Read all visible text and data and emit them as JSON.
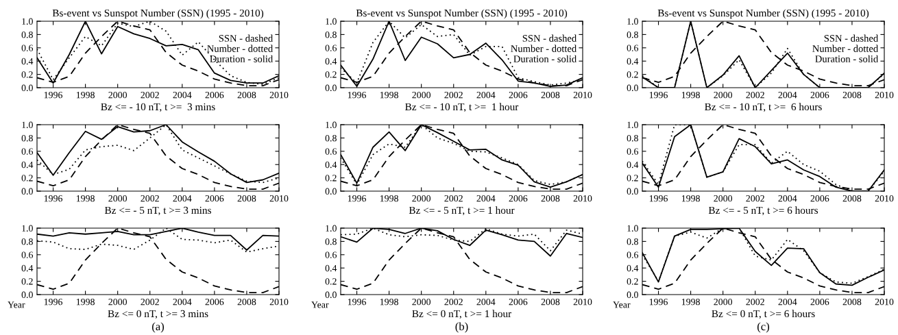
{
  "chart_data": [
    {
      "type": "line",
      "title": "Bs-event vs Sunspot Number (SSN) (1995 - 2010)",
      "xlabel": "Bz <= - 10 nT, t >=  3 mins",
      "x": [
        1995,
        1996,
        1997,
        1998,
        1999,
        2000,
        2001,
        2002,
        2003,
        2004,
        2005,
        2006,
        2007,
        2008,
        2009,
        2010
      ],
      "xlim": [
        1995,
        2010
      ],
      "xticks": [
        1996,
        1998,
        2000,
        2002,
        2004,
        2006,
        2008,
        2010
      ],
      "ylim": [
        0,
        1
      ],
      "yticks": [
        {
          "value": 0,
          "label": "0.0"
        },
        {
          "value": 0.2,
          "label": "0.2"
        },
        {
          "value": 0.4,
          "label": "0.4"
        },
        {
          "value": 0.6,
          "label": "0.6"
        },
        {
          "value": 0.8,
          "label": "0.8"
        },
        {
          "value": 1,
          "label": "1.0"
        }
      ],
      "grid": false,
      "annotations": [
        "SSN - dashed",
        "Number - dotted",
        "Duration - solid"
      ],
      "series": [
        {
          "color": "#000000",
          "line_style": "dashed",
          "values": [
            0.15,
            0.08,
            0.17,
            0.52,
            0.77,
            1.0,
            0.93,
            0.87,
            0.53,
            0.34,
            0.25,
            0.13,
            0.07,
            0.03,
            0.03,
            0.12
          ]
        },
        {
          "color": "#000000",
          "line_style": "dotted",
          "values": [
            0.58,
            0.12,
            0.45,
            0.77,
            0.63,
            0.97,
            0.92,
            1.0,
            0.85,
            0.49,
            0.69,
            0.42,
            0.18,
            0.08,
            0.05,
            0.15
          ]
        },
        {
          "color": "#000000",
          "line_style": "solid",
          "values": [
            0.45,
            0.07,
            0.5,
            1.0,
            0.51,
            0.92,
            0.81,
            0.74,
            0.63,
            0.65,
            0.57,
            0.22,
            0.11,
            0.07,
            0.07,
            0.18
          ]
        }
      ]
    },
    {
      "type": "line",
      "title": "Bs-event vs Sunspot Number (SSN) (1995 - 2010)",
      "xlabel": "Bz <= - 10 nT, t >=  1 hour",
      "x": [
        1995,
        1996,
        1997,
        1998,
        1999,
        2000,
        2001,
        2002,
        2003,
        2004,
        2005,
        2006,
        2007,
        2008,
        2009,
        2010
      ],
      "xlim": [
        1995,
        2010
      ],
      "xticks": [
        1996,
        1998,
        2000,
        2002,
        2004,
        2006,
        2008,
        2010
      ],
      "ylim": [
        0,
        1
      ],
      "yticks": [
        {
          "value": 0,
          "label": "0.0"
        },
        {
          "value": 0.2,
          "label": "0.2"
        },
        {
          "value": 0.4,
          "label": "0.4"
        },
        {
          "value": 0.6,
          "label": "0.6"
        },
        {
          "value": 0.8,
          "label": "0.8"
        },
        {
          "value": 1,
          "label": "1.0"
        }
      ],
      "grid": false,
      "annotations": [
        "SSN - dashed",
        "Number - dotted",
        "Duration - solid"
      ],
      "series": [
        {
          "color": "#000000",
          "line_style": "dashed",
          "values": [
            0.15,
            0.08,
            0.17,
            0.52,
            0.77,
            1.0,
            0.93,
            0.87,
            0.53,
            0.34,
            0.25,
            0.13,
            0.07,
            0.03,
            0.03,
            0.12
          ]
        },
        {
          "color": "#000000",
          "line_style": "dotted",
          "values": [
            0.3,
            0.07,
            0.68,
            1.0,
            0.75,
            0.95,
            0.77,
            0.8,
            0.49,
            0.62,
            0.62,
            0.15,
            0.09,
            0.04,
            0.07,
            0.12
          ]
        },
        {
          "color": "#000000",
          "line_style": "solid",
          "values": [
            0.34,
            0.02,
            0.43,
            1.0,
            0.41,
            0.76,
            0.66,
            0.45,
            0.5,
            0.67,
            0.42,
            0.1,
            0.07,
            0.02,
            0.04,
            0.15
          ]
        }
      ]
    },
    {
      "type": "line",
      "title": "Bs-event vs Sunspot Number (SSN) (1995 - 2010)",
      "xlabel": "Bz <= - 10 nT, t >=  6 hours",
      "x": [
        1995,
        1996,
        1997,
        1998,
        1999,
        2000,
        2001,
        2002,
        2003,
        2004,
        2005,
        2006,
        2007,
        2008,
        2009,
        2010
      ],
      "xlim": [
        1995,
        2010
      ],
      "xticks": [
        1996,
        1998,
        2000,
        2002,
        2004,
        2006,
        2008,
        2010
      ],
      "ylim": [
        0,
        1
      ],
      "yticks": [
        {
          "value": 0,
          "label": "0.0"
        },
        {
          "value": 0.2,
          "label": "0.2"
        },
        {
          "value": 0.4,
          "label": "0.4"
        },
        {
          "value": 0.6,
          "label": "0.6"
        },
        {
          "value": 0.8,
          "label": "0.8"
        },
        {
          "value": 1,
          "label": "1.0"
        }
      ],
      "grid": false,
      "annotations": [
        "SSN - dashed",
        "Number - dotted",
        "Duration - solid"
      ],
      "series": [
        {
          "color": "#000000",
          "line_style": "dashed",
          "values": [
            0.15,
            0.08,
            0.17,
            0.52,
            0.77,
            1.0,
            0.93,
            0.87,
            0.53,
            0.34,
            0.25,
            0.13,
            0.07,
            0.03,
            0.03,
            0.12
          ]
        },
        {
          "color": "#000000",
          "line_style": "dotted",
          "values": [
            0.18,
            0.0,
            0.0,
            1.0,
            0.0,
            0.18,
            0.42,
            0.0,
            0.22,
            0.59,
            0.2,
            0.0,
            0.0,
            0.0,
            0.0,
            0.21
          ]
        },
        {
          "color": "#000000",
          "line_style": "solid",
          "values": [
            0.16,
            0.0,
            0.0,
            1.0,
            0.0,
            0.19,
            0.48,
            0.0,
            0.26,
            0.52,
            0.2,
            0.0,
            0.0,
            0.0,
            0.0,
            0.22
          ]
        }
      ]
    },
    {
      "type": "line",
      "xlabel": "Bz <= - 5 nT, t >= 3 mins",
      "x": [
        1995,
        1996,
        1997,
        1998,
        1999,
        2000,
        2001,
        2002,
        2003,
        2004,
        2005,
        2006,
        2007,
        2008,
        2009,
        2010
      ],
      "xlim": [
        1995,
        2010
      ],
      "xticks": [
        1996,
        1998,
        2000,
        2002,
        2004,
        2006,
        2008,
        2010
      ],
      "ylim": [
        0,
        1
      ],
      "yticks": [
        {
          "value": 0,
          "label": "0.0"
        },
        {
          "value": 0.2,
          "label": "0.2"
        },
        {
          "value": 0.4,
          "label": "0.4"
        },
        {
          "value": 0.6,
          "label": "0.6"
        },
        {
          "value": 0.8,
          "label": "0.8"
        },
        {
          "value": 1,
          "label": "1.0"
        }
      ],
      "grid": false,
      "series": [
        {
          "color": "#000000",
          "line_style": "dashed",
          "values": [
            0.15,
            0.08,
            0.17,
            0.52,
            0.77,
            1.0,
            0.93,
            0.87,
            0.53,
            0.34,
            0.25,
            0.13,
            0.07,
            0.03,
            0.03,
            0.12
          ]
        },
        {
          "color": "#000000",
          "line_style": "dotted",
          "values": [
            0.47,
            0.25,
            0.33,
            0.62,
            0.67,
            0.69,
            0.61,
            0.8,
            1.0,
            0.62,
            0.5,
            0.38,
            0.26,
            0.15,
            0.13,
            0.2
          ]
        },
        {
          "color": "#000000",
          "line_style": "solid",
          "values": [
            0.58,
            0.24,
            0.58,
            0.9,
            0.78,
            0.97,
            0.89,
            0.91,
            1.0,
            0.74,
            0.59,
            0.45,
            0.26,
            0.13,
            0.17,
            0.27
          ]
        }
      ]
    },
    {
      "type": "line",
      "xlabel": "Bz <= - 5 nT, t >= 1 hour",
      "x": [
        1995,
        1996,
        1997,
        1998,
        1999,
        2000,
        2001,
        2002,
        2003,
        2004,
        2005,
        2006,
        2007,
        2008,
        2009,
        2010
      ],
      "xlim": [
        1995,
        2010
      ],
      "xticks": [
        1996,
        1998,
        2000,
        2002,
        2004,
        2006,
        2008,
        2010
      ],
      "ylim": [
        0,
        1
      ],
      "yticks": [
        {
          "value": 0,
          "label": "0.0"
        },
        {
          "value": 0.2,
          "label": "0.2"
        },
        {
          "value": 0.4,
          "label": "0.4"
        },
        {
          "value": 0.6,
          "label": "0.6"
        },
        {
          "value": 0.8,
          "label": "0.8"
        },
        {
          "value": 1,
          "label": "1.0"
        }
      ],
      "grid": false,
      "series": [
        {
          "color": "#000000",
          "line_style": "dashed",
          "values": [
            0.15,
            0.08,
            0.17,
            0.52,
            0.77,
            1.0,
            0.93,
            0.87,
            0.53,
            0.34,
            0.25,
            0.13,
            0.07,
            0.03,
            0.03,
            0.12
          ]
        },
        {
          "color": "#000000",
          "line_style": "dotted",
          "values": [
            0.5,
            0.1,
            0.55,
            0.71,
            0.66,
            1.0,
            0.8,
            0.72,
            0.6,
            0.59,
            0.5,
            0.4,
            0.16,
            0.1,
            0.14,
            0.25
          ]
        },
        {
          "color": "#000000",
          "line_style": "solid",
          "values": [
            0.55,
            0.12,
            0.66,
            0.89,
            0.61,
            1.0,
            0.88,
            0.75,
            0.62,
            0.63,
            0.47,
            0.39,
            0.14,
            0.06,
            0.14,
            0.25
          ]
        }
      ]
    },
    {
      "type": "line",
      "xlabel": "Bz <= - 5 nT, t >= 6 hours",
      "x": [
        1995,
        1996,
        1997,
        1998,
        1999,
        2000,
        2001,
        2002,
        2003,
        2004,
        2005,
        2006,
        2007,
        2008,
        2009,
        2010
      ],
      "xlim": [
        1995,
        2010
      ],
      "xticks": [
        1996,
        1998,
        2000,
        2002,
        2004,
        2006,
        2008,
        2010
      ],
      "ylim": [
        0,
        1
      ],
      "yticks": [
        {
          "value": 0,
          "label": "0.0"
        },
        {
          "value": 0.2,
          "label": "0.2"
        },
        {
          "value": 0.4,
          "label": "0.4"
        },
        {
          "value": 0.6,
          "label": "0.6"
        },
        {
          "value": 0.8,
          "label": "0.8"
        },
        {
          "value": 1,
          "label": "1.0"
        }
      ],
      "grid": false,
      "series": [
        {
          "color": "#000000",
          "line_style": "dashed",
          "values": [
            0.15,
            0.08,
            0.17,
            0.52,
            0.77,
            1.0,
            0.93,
            0.87,
            0.53,
            0.34,
            0.25,
            0.13,
            0.07,
            0.03,
            0.03,
            0.12
          ]
        },
        {
          "color": "#000000",
          "line_style": "dotted",
          "values": [
            0.45,
            0.1,
            1.0,
            1.0,
            0.21,
            0.29,
            0.7,
            0.7,
            0.42,
            0.6,
            0.4,
            0.3,
            0.1,
            0.0,
            0.0,
            0.3
          ]
        },
        {
          "color": "#000000",
          "line_style": "solid",
          "values": [
            0.42,
            0.06,
            0.82,
            1.0,
            0.21,
            0.29,
            0.79,
            0.67,
            0.41,
            0.47,
            0.32,
            0.22,
            0.06,
            0.0,
            0.0,
            0.32
          ]
        }
      ]
    },
    {
      "type": "line",
      "xlabel": "Bz <= 0 nT, t >= 3 mins",
      "x": [
        1995,
        1996,
        1997,
        1998,
        1999,
        2000,
        2001,
        2002,
        2003,
        2004,
        2005,
        2006,
        2007,
        2008,
        2009,
        2010
      ],
      "xlim": [
        1995,
        2010
      ],
      "xticks": [
        1996,
        1998,
        2000,
        2002,
        2004,
        2006,
        2008,
        2010
      ],
      "ylim": [
        0,
        1
      ],
      "yticks": [
        {
          "value": 0,
          "label": "0.0"
        },
        {
          "value": 0.2,
          "label": "0.2"
        },
        {
          "value": 0.4,
          "label": "0.4"
        },
        {
          "value": 0.6,
          "label": "0.6"
        },
        {
          "value": 0.8,
          "label": "0.8"
        },
        {
          "value": 1,
          "label": "1.0"
        }
      ],
      "grid": false,
      "annotations": [
        "Year",
        "(a)"
      ],
      "series": [
        {
          "color": "#000000",
          "line_style": "dashed",
          "values": [
            0.15,
            0.08,
            0.17,
            0.52,
            0.77,
            1.0,
            0.93,
            0.87,
            0.53,
            0.34,
            0.25,
            0.13,
            0.07,
            0.03,
            0.03,
            0.12
          ]
        },
        {
          "color": "#000000",
          "line_style": "dotted",
          "values": [
            0.81,
            0.79,
            0.69,
            0.68,
            0.76,
            0.74,
            0.68,
            0.82,
            1.0,
            0.83,
            0.82,
            0.78,
            0.82,
            0.64,
            0.69,
            0.73
          ]
        },
        {
          "color": "#000000",
          "line_style": "solid",
          "values": [
            0.91,
            0.88,
            0.93,
            0.91,
            0.93,
            0.95,
            0.9,
            0.9,
            0.95,
            1.0,
            0.94,
            0.89,
            0.89,
            0.67,
            0.89,
            0.88
          ]
        }
      ]
    },
    {
      "type": "line",
      "xlabel": "Bz <= 0 nT, t >= 1 hour",
      "x": [
        1995,
        1996,
        1997,
        1998,
        1999,
        2000,
        2001,
        2002,
        2003,
        2004,
        2005,
        2006,
        2007,
        2008,
        2009,
        2010
      ],
      "xlim": [
        1995,
        2010
      ],
      "xticks": [
        1996,
        1998,
        2000,
        2002,
        2004,
        2006,
        2008,
        2010
      ],
      "ylim": [
        0,
        1
      ],
      "yticks": [
        {
          "value": 0,
          "label": "0.0"
        },
        {
          "value": 0.2,
          "label": "0.2"
        },
        {
          "value": 0.4,
          "label": "0.4"
        },
        {
          "value": 0.6,
          "label": "0.6"
        },
        {
          "value": 0.8,
          "label": "0.8"
        },
        {
          "value": 1,
          "label": "1.0"
        }
      ],
      "grid": false,
      "annotations": [
        "Year",
        "(b)"
      ],
      "series": [
        {
          "color": "#000000",
          "line_style": "dashed",
          "values": [
            0.15,
            0.08,
            0.17,
            0.52,
            0.77,
            1.0,
            0.93,
            0.87,
            0.53,
            0.34,
            0.25,
            0.13,
            0.07,
            0.03,
            0.03,
            0.12
          ]
        },
        {
          "color": "#000000",
          "line_style": "dotted",
          "values": [
            0.9,
            0.91,
            1.0,
            0.9,
            0.87,
            0.9,
            0.89,
            0.82,
            0.8,
            0.99,
            0.91,
            0.88,
            0.91,
            0.66,
            0.97,
            0.91
          ]
        },
        {
          "color": "#000000",
          "line_style": "solid",
          "values": [
            0.87,
            0.79,
            1.0,
            0.98,
            0.92,
            1.0,
            0.96,
            0.83,
            0.74,
            0.97,
            0.9,
            0.82,
            0.8,
            0.58,
            0.92,
            0.86
          ]
        }
      ]
    },
    {
      "type": "line",
      "xlabel": "Bz <= 0 nT, t >= 6 hours",
      "x": [
        1995,
        1996,
        1997,
        1998,
        1999,
        2000,
        2001,
        2002,
        2003,
        2004,
        2005,
        2006,
        2007,
        2008,
        2009,
        2010
      ],
      "xlim": [
        1995,
        2010
      ],
      "xticks": [
        1996,
        1998,
        2000,
        2002,
        2004,
        2006,
        2008,
        2010
      ],
      "ylim": [
        0,
        1
      ],
      "yticks": [
        {
          "value": 0,
          "label": "0.0"
        },
        {
          "value": 0.2,
          "label": "0.2"
        },
        {
          "value": 0.4,
          "label": "0.4"
        },
        {
          "value": 0.6,
          "label": "0.6"
        },
        {
          "value": 0.8,
          "label": "0.8"
        },
        {
          "value": 1,
          "label": "1.0"
        }
      ],
      "grid": false,
      "annotations": [
        "Year",
        "(c)"
      ],
      "series": [
        {
          "color": "#000000",
          "line_style": "dashed",
          "values": [
            0.15,
            0.08,
            0.17,
            0.52,
            0.77,
            1.0,
            0.93,
            0.87,
            0.53,
            0.34,
            0.25,
            0.13,
            0.07,
            0.03,
            0.03,
            0.12
          ]
        },
        {
          "color": "#000000",
          "line_style": "dotted",
          "values": [
            0.6,
            0.2,
            0.88,
            0.94,
            0.85,
            1.0,
            1.0,
            0.58,
            0.52,
            0.83,
            0.66,
            0.33,
            0.19,
            0.17,
            0.27,
            0.38
          ]
        },
        {
          "color": "#000000",
          "line_style": "solid",
          "values": [
            0.63,
            0.19,
            0.88,
            0.98,
            0.98,
            0.99,
            1.0,
            0.65,
            0.44,
            0.7,
            0.69,
            0.33,
            0.16,
            0.14,
            0.26,
            0.37
          ]
        }
      ]
    }
  ]
}
